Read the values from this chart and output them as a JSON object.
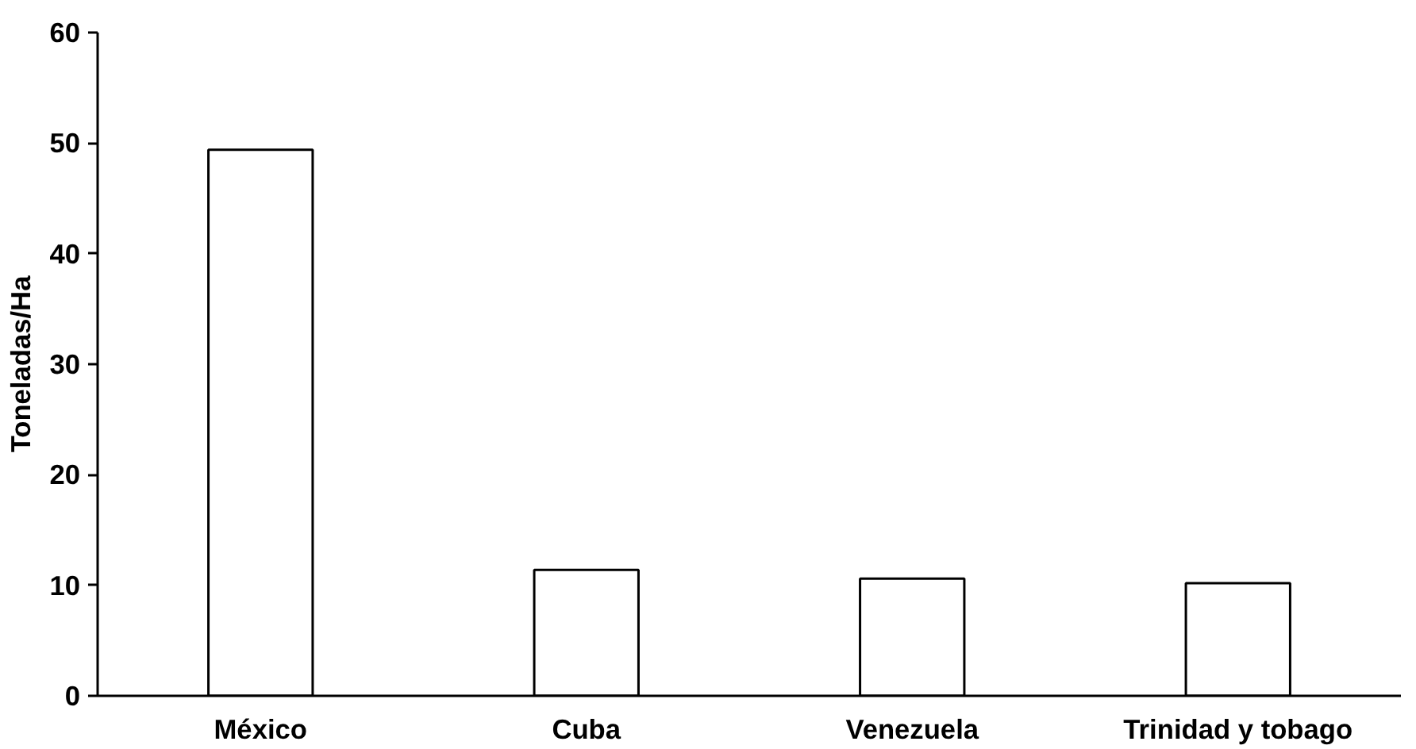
{
  "chart_data": {
    "type": "bar",
    "ylabel": "Toneladas/Ha",
    "categories": [
      "México",
      "Cuba",
      "Venezuela",
      "Trinidad y tobago"
    ],
    "values": [
      49.4,
      11.4,
      10.6,
      10.2
    ],
    "color": "#ffffff",
    "ylim": [
      0,
      60
    ],
    "yticks": [
      0,
      10,
      20,
      30,
      40,
      50,
      60
    ],
    "grid": false
  }
}
